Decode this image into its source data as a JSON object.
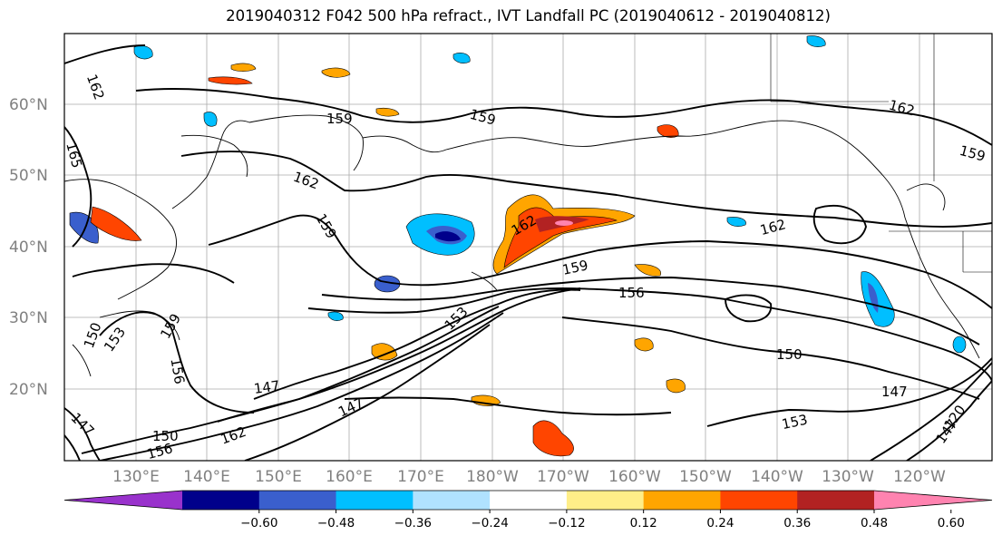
{
  "title": "2019040312 F042 500 hPa refract., IVT Landfall PC (2019040612 - 2019040812)",
  "map": {
    "lat_labels": [
      "60°N",
      "50°N",
      "40°N",
      "30°N",
      "20°N"
    ],
    "lon_labels": [
      "130°E",
      "140°E",
      "150°E",
      "160°E",
      "170°E",
      "180°W",
      "170°W",
      "160°W",
      "150°W",
      "140°W",
      "130°W",
      "120°W"
    ],
    "contour_labels": [
      "162",
      "159",
      "159",
      "162",
      "165",
      "162",
      "159",
      "162",
      "159",
      "162",
      "159",
      "156",
      "153",
      "150",
      "159",
      "153",
      "156",
      "147",
      "150",
      "147",
      "147",
      "150",
      "162",
      "156",
      "147",
      "153",
      "120",
      "147"
    ]
  },
  "colorbar": {
    "colors": [
      "#9932cc",
      "#00008b",
      "#3a5fcd",
      "#00bfff",
      "#b0e2ff",
      "#ffffff",
      "#ffee88",
      "#ffa500",
      "#ff4500",
      "#b22222",
      "#ff83b0"
    ],
    "tick_labels": [
      "−0.60",
      "−0.48",
      "−0.36",
      "−0.24",
      "−0.12",
      "0.12",
      "0.24",
      "0.36",
      "0.48",
      "0.60"
    ]
  }
}
